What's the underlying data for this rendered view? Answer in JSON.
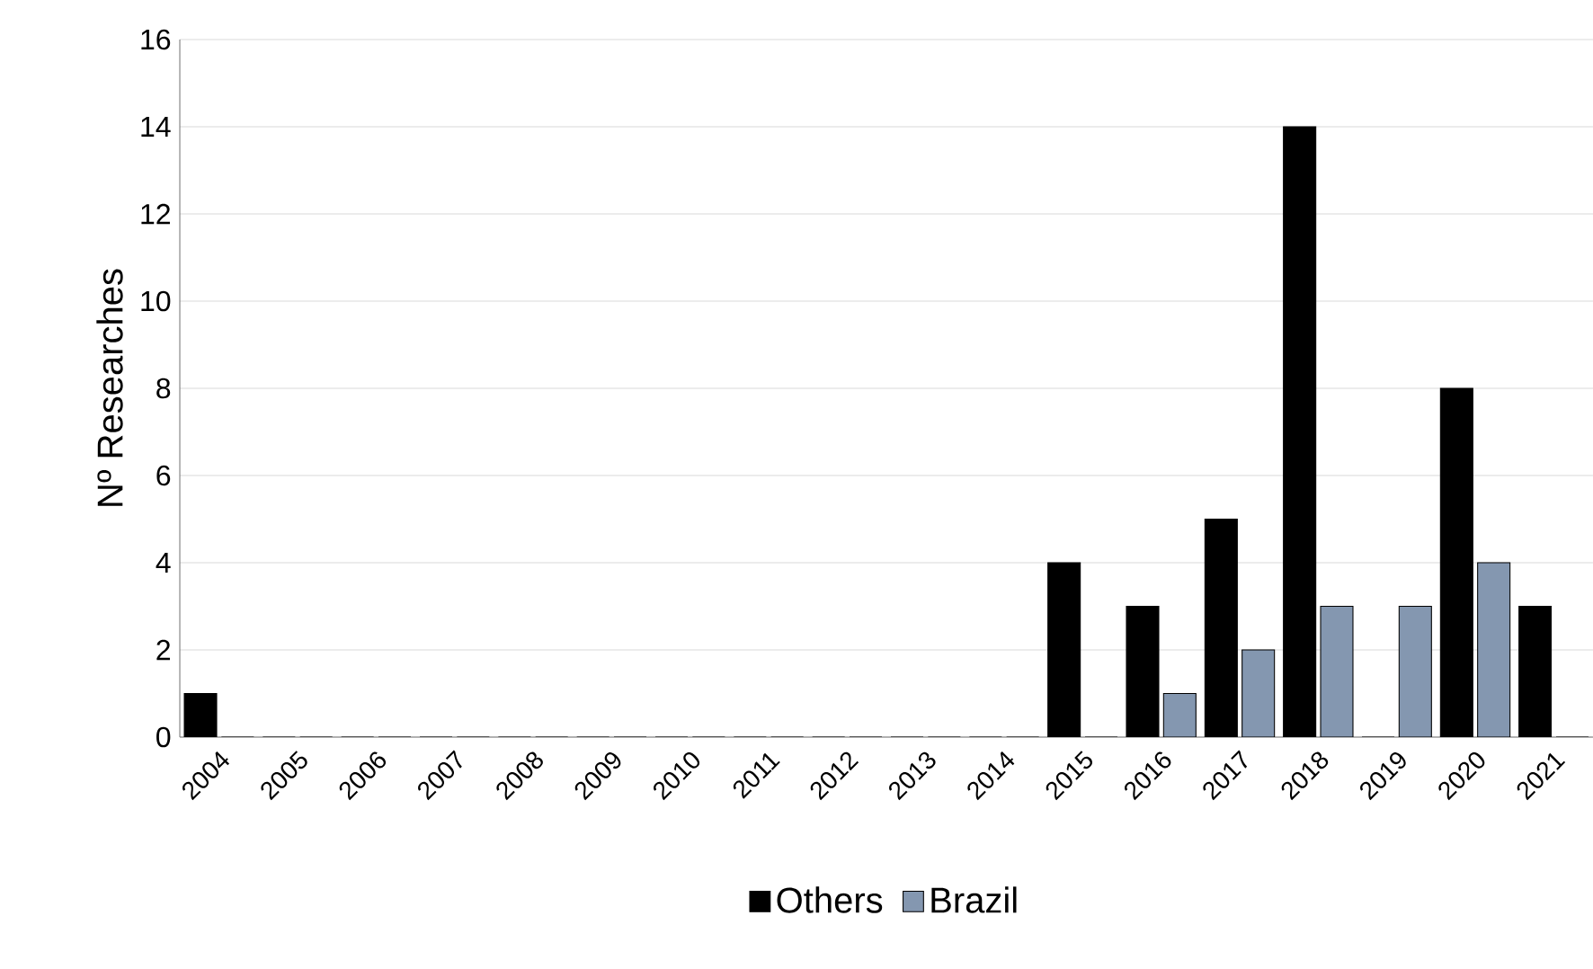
{
  "chart_data": {
    "type": "bar",
    "ylabel": "Nº Researches",
    "categories": [
      "2004",
      "2005",
      "2006",
      "2007",
      "2008",
      "2009",
      "2010",
      "2011",
      "2012",
      "2013",
      "2014",
      "2015",
      "2016",
      "2017",
      "2018",
      "2019",
      "2020",
      "2021"
    ],
    "series": [
      {
        "name": "Others",
        "color": "#000000",
        "values": [
          1,
          0,
          0,
          0,
          0,
          0,
          0,
          0,
          0,
          0,
          0,
          4,
          3,
          5,
          14,
          0,
          8,
          3
        ]
      },
      {
        "name": "Brazil",
        "color": "#8497b0",
        "values": [
          0,
          0,
          0,
          0,
          0,
          0,
          0,
          0,
          0,
          0,
          0,
          0,
          1,
          2,
          3,
          3,
          4,
          0
        ]
      }
    ],
    "ylim": [
      0,
      16
    ],
    "yticks": [
      0,
      2,
      4,
      6,
      8,
      10,
      12,
      14,
      16
    ],
    "grid": "y",
    "legend": "bottom"
  }
}
